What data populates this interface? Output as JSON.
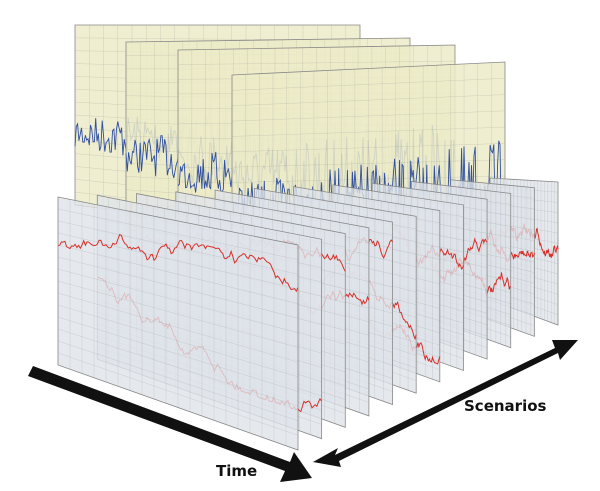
{
  "labels": {
    "time": "Time",
    "scenarios": "Scenarios"
  }
}
